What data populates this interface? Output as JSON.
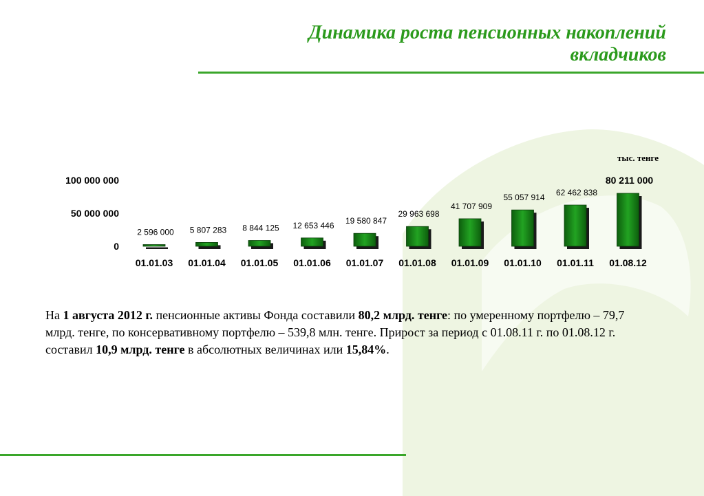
{
  "title": {
    "line1": "Динамика роста пенсионных накоплений",
    "line2": "вкладчиков"
  },
  "unit_label": "тыс. тенге",
  "paragraph": {
    "p1": "На ",
    "b1": "1 августа 2012 г.",
    "p2": " пенсионные активы Фонда составили ",
    "b2": "80,2 млрд. тенге",
    "p3": ": по умеренному портфелю – 79,7 млрд. тенге, по консервативному портфелю – 539,8 млн. тенге. Прирост за период с 01.08.11 г. по 01.08.12 г. составил ",
    "b3": "10,9 млрд. тенге",
    "p4": " в абсолютных величинах или ",
    "b4": "15,84%",
    "p5": "."
  },
  "colors": {
    "accent": "#2b9a1c",
    "bar_dark": "#0d5e0d",
    "bar_light": "#22a322",
    "leaf": "#eef5e2"
  },
  "chart_data": {
    "type": "bar",
    "categories": [
      "01.01.03",
      "01.01.04",
      "01.01.05",
      "01.01.06",
      "01.01.07",
      "01.01.08",
      "01.01.09",
      "01.01.10",
      "01.01.11",
      "01.08.12"
    ],
    "values": [
      2596000,
      5807283,
      8844125,
      12653446,
      19580847,
      29963698,
      41707909,
      55057914,
      62462838,
      80211000
    ],
    "data_labels": [
      "2 596 000",
      "5 807 283",
      "8 844 125",
      "12 653 446",
      "19 580 847",
      "29 963 698",
      "41 707 909",
      "55 057 914",
      "62 462 838",
      "80 211 000"
    ],
    "yticks": [
      {
        "value": 0,
        "label": "0"
      },
      {
        "value": 50000000,
        "label": "50 000 000"
      },
      {
        "value": 100000000,
        "label": "100 000 000"
      }
    ],
    "ylim": [
      0,
      100000000
    ],
    "grid": false,
    "legend": "none"
  }
}
